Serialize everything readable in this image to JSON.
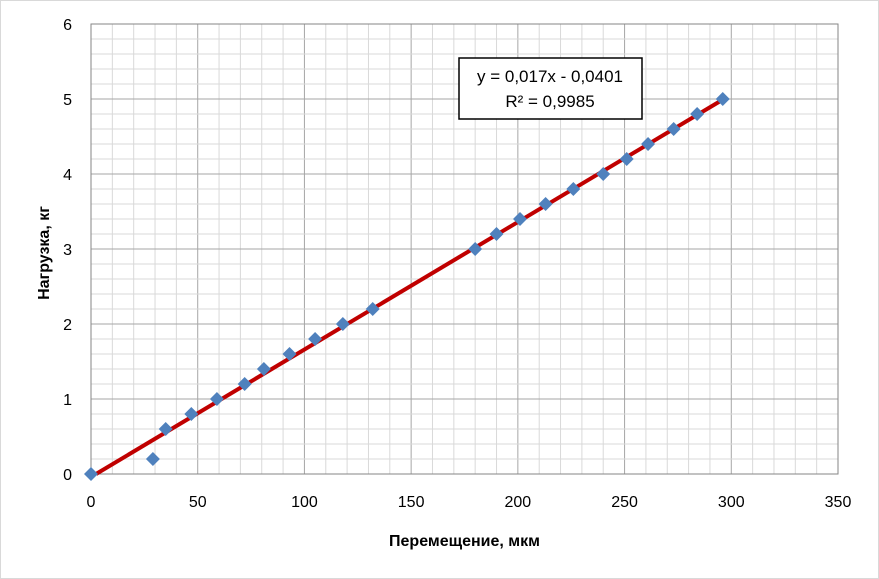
{
  "chart_data": {
    "type": "scatter",
    "title": "",
    "xlabel": "Перемещение, мкм",
    "ylabel": "Нагрузка, кг",
    "xlim": [
      0,
      350
    ],
    "ylim": [
      0,
      6
    ],
    "xticks": [
      "0",
      "50",
      "100",
      "150",
      "200",
      "250",
      "300",
      "350"
    ],
    "yticks": [
      "0",
      "1",
      "2",
      "3",
      "4",
      "5",
      "6"
    ],
    "grid": true,
    "legend": "none",
    "series": [
      {
        "marker": "diamond",
        "color": "#4f81bd",
        "points": [
          [
            0,
            0
          ],
          [
            29,
            0.2
          ],
          [
            35,
            0.6
          ],
          [
            47,
            0.8
          ],
          [
            59,
            1.0
          ],
          [
            72,
            1.2
          ],
          [
            81,
            1.4
          ],
          [
            93,
            1.6
          ],
          [
            105,
            1.8
          ],
          [
            118,
            2.0
          ],
          [
            132,
            2.2
          ],
          [
            180,
            3.0
          ],
          [
            190,
            3.2
          ],
          [
            201,
            3.4
          ],
          [
            213,
            3.6
          ],
          [
            226,
            3.8
          ],
          [
            240,
            4.0
          ],
          [
            251,
            4.2
          ],
          [
            261,
            4.4
          ],
          [
            273,
            4.6
          ],
          [
            284,
            4.8
          ],
          [
            296,
            5.0
          ]
        ]
      }
    ],
    "trendline": {
      "type": "linear",
      "color": "#c00000",
      "slope": 0.017,
      "intercept": -0.0401,
      "x_range": [
        0,
        296
      ],
      "equation": "y = 0,017x - 0,0401",
      "r_squared": "R² = 0,9985"
    }
  }
}
